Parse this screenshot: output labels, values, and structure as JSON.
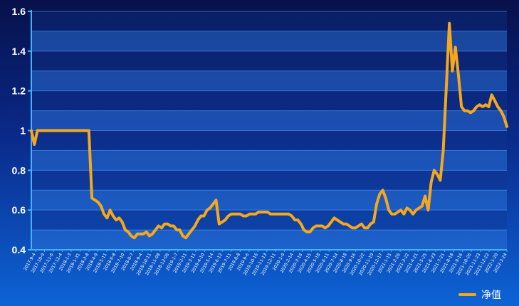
{
  "chart_data": {
    "type": "line",
    "title": "",
    "xlabel": "",
    "ylabel": "",
    "ylim": [
      0.4,
      1.6
    ],
    "yticks": [
      "0.4",
      "0.6",
      "0.8",
      "1",
      "1.2",
      "1.4",
      "1.6"
    ],
    "grid": true,
    "legend_placement": "bottom-right",
    "colors": {
      "line": "#f5a81c",
      "band_light": "#2a6fd6",
      "band_dark": "#10378f",
      "axis": "#3fb4ff",
      "text": "#ffffff"
    },
    "x_tick_labels": [
      "2017-9-4",
      "2017-10-9",
      "2017-11-6",
      "2017-12-4",
      "2018-1-3",
      "2018-1-31",
      "2018-3-8",
      "2018-4-9",
      "2018-5-11",
      "2018-6-8",
      "2018-7-10",
      "2018-8-7",
      "2018-9-4",
      "2018-10-11",
      "2018-11-08",
      "2018-12-06",
      "2019-1-7",
      "2019-2-11",
      "2019-3-11",
      "2019-4-10",
      "2019-5-14",
      "2019-6-12",
      "2019-7-11",
      "2019-8-8",
      "2019-9-6",
      "2019-10-16",
      "2019-11-13",
      "2019-12-11",
      "2020-1-9",
      "2020-2-14",
      "2020-3-16",
      "2020-4-15",
      "2020-5-18",
      "2020-6-11",
      "2020-7-14",
      "2020-8-18",
      "2020-9-16",
      "2020-10-22",
      "2020-11-19",
      "2020-12-17",
      "2021-1-15",
      "2021-2-26",
      "2021-3-22",
      "2021-4-21",
      "2021-5-25",
      "2021-6-23",
      "2021-7-21",
      "2021-8-18",
      "2021-9-16",
      "2021-10-26",
      "2021-11-23",
      "2021-12-22",
      "2022-1-20",
      "2022-3-24"
    ],
    "series": [
      {
        "name": "净值",
        "values": [
          1.0,
          0.93,
          1.0,
          1.0,
          1.0,
          1.0,
          1.0,
          1.0,
          1.0,
          1.0,
          1.0,
          1.0,
          1.0,
          1.0,
          1.0,
          1.0,
          1.0,
          1.0,
          1.0,
          1.0,
          0.66,
          0.65,
          0.64,
          0.62,
          0.58,
          0.56,
          0.6,
          0.57,
          0.55,
          0.56,
          0.54,
          0.5,
          0.49,
          0.47,
          0.46,
          0.48,
          0.48,
          0.48,
          0.49,
          0.47,
          0.48,
          0.5,
          0.52,
          0.51,
          0.53,
          0.53,
          0.52,
          0.52,
          0.5,
          0.5,
          0.47,
          0.46,
          0.48,
          0.5,
          0.52,
          0.55,
          0.57,
          0.57,
          0.6,
          0.61,
          0.63,
          0.65,
          0.53,
          0.54,
          0.55,
          0.57,
          0.58,
          0.58,
          0.58,
          0.58,
          0.57,
          0.57,
          0.58,
          0.58,
          0.58,
          0.59,
          0.59,
          0.59,
          0.59,
          0.58,
          0.58,
          0.58,
          0.58,
          0.58,
          0.58,
          0.58,
          0.57,
          0.55,
          0.55,
          0.53,
          0.5,
          0.49,
          0.49,
          0.51,
          0.52,
          0.52,
          0.52,
          0.51,
          0.52,
          0.54,
          0.56,
          0.55,
          0.54,
          0.53,
          0.53,
          0.52,
          0.51,
          0.51,
          0.52,
          0.53,
          0.51,
          0.51,
          0.53,
          0.54,
          0.63,
          0.68,
          0.7,
          0.66,
          0.6,
          0.58,
          0.58,
          0.59,
          0.6,
          0.58,
          0.61,
          0.6,
          0.58,
          0.6,
          0.61,
          0.62,
          0.67,
          0.6,
          0.74,
          0.8,
          0.78,
          0.75,
          0.9,
          1.22,
          1.54,
          1.3,
          1.42,
          1.28,
          1.12,
          1.1,
          1.1,
          1.09,
          1.1,
          1.12,
          1.13,
          1.12,
          1.13,
          1.12,
          1.18,
          1.15,
          1.12,
          1.1,
          1.07,
          1.02
        ]
      }
    ]
  }
}
